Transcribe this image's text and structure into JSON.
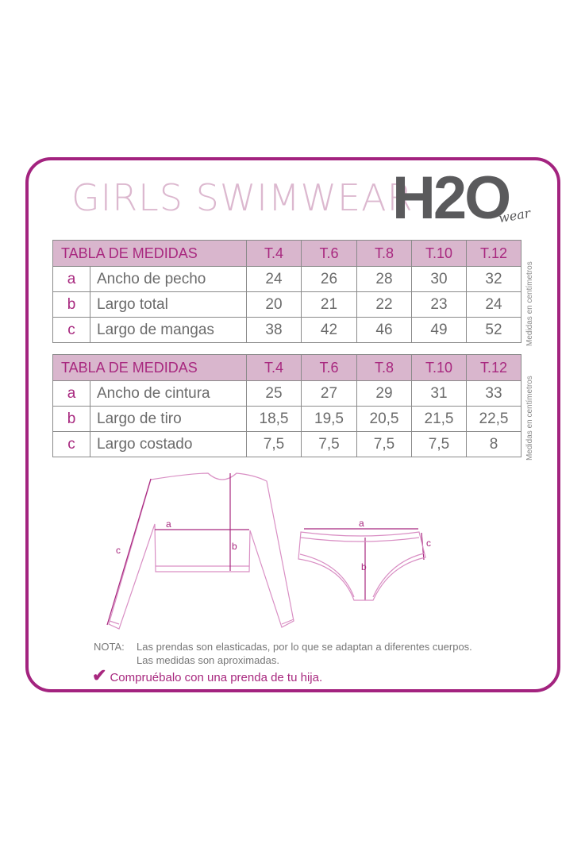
{
  "title": "GIRLS SWIMWEAR",
  "logo": {
    "main": "H2O",
    "sub": "wear"
  },
  "colors": {
    "accent": "#a3237f",
    "header_bg": "#d9b6cd",
    "title": "#dcb8cf"
  },
  "side_note": "Medidas en centímetros",
  "tables": [
    {
      "header": "TABLA DE MEDIDAS",
      "sizes": [
        "T.4",
        "T.6",
        "T.8",
        "T.10",
        "T.12"
      ],
      "rows": [
        {
          "key": "a",
          "label": "Ancho de pecho",
          "values": [
            "24",
            "26",
            "28",
            "30",
            "32"
          ]
        },
        {
          "key": "b",
          "label": "Largo total",
          "values": [
            "20",
            "21",
            "22",
            "23",
            "24"
          ]
        },
        {
          "key": "c",
          "label": "Largo de mangas",
          "values": [
            "38",
            "42",
            "46",
            "49",
            "52"
          ]
        }
      ]
    },
    {
      "header": "TABLA DE MEDIDAS",
      "sizes": [
        "T.4",
        "T.6",
        "T.8",
        "T.10",
        "T.12"
      ],
      "rows": [
        {
          "key": "a",
          "label": "Ancho de cintura",
          "values": [
            "25",
            "27",
            "29",
            "31",
            "33"
          ]
        },
        {
          "key": "b",
          "label": "Largo de tiro",
          "values": [
            "18,5",
            "19,5",
            "20,5",
            "21,5",
            "22,5"
          ]
        },
        {
          "key": "c",
          "label": "Largo costado",
          "values": [
            "7,5",
            "7,5",
            "7,5",
            "7,5",
            "8"
          ]
        }
      ]
    }
  ],
  "diagram": {
    "top_labels": [
      "a",
      "b",
      "c"
    ],
    "bottom_labels": [
      "a",
      "b",
      "c"
    ]
  },
  "note": {
    "label": "NOTA:",
    "line1": "Las prendas son elasticadas, por lo que se adaptan a diferentes cuerpos.",
    "line2": "Las medidas son aproximadas."
  },
  "check": {
    "icon": "checkmark-icon",
    "text": "Compruébalo con una prenda de tu hija."
  }
}
